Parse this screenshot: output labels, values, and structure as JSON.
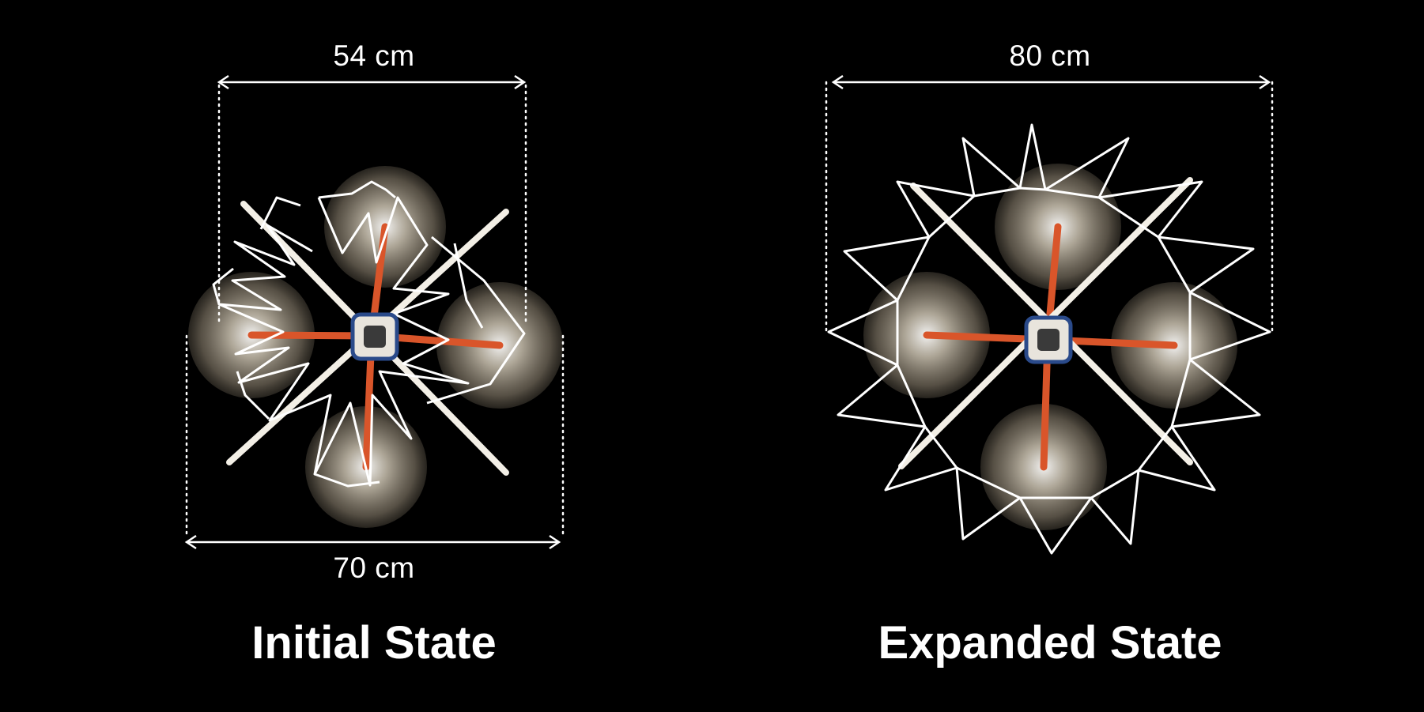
{
  "figure": {
    "initial": {
      "title": "Initial State",
      "top_dimension": "54 cm",
      "bottom_dimension": "70 cm"
    },
    "expanded": {
      "title": "Expanded State",
      "top_dimension": "80 cm"
    }
  },
  "colors": {
    "background": "#000000",
    "frame": "#ffffff",
    "arm": "#d9552a",
    "propeller_glow": "#e9e1cf"
  }
}
